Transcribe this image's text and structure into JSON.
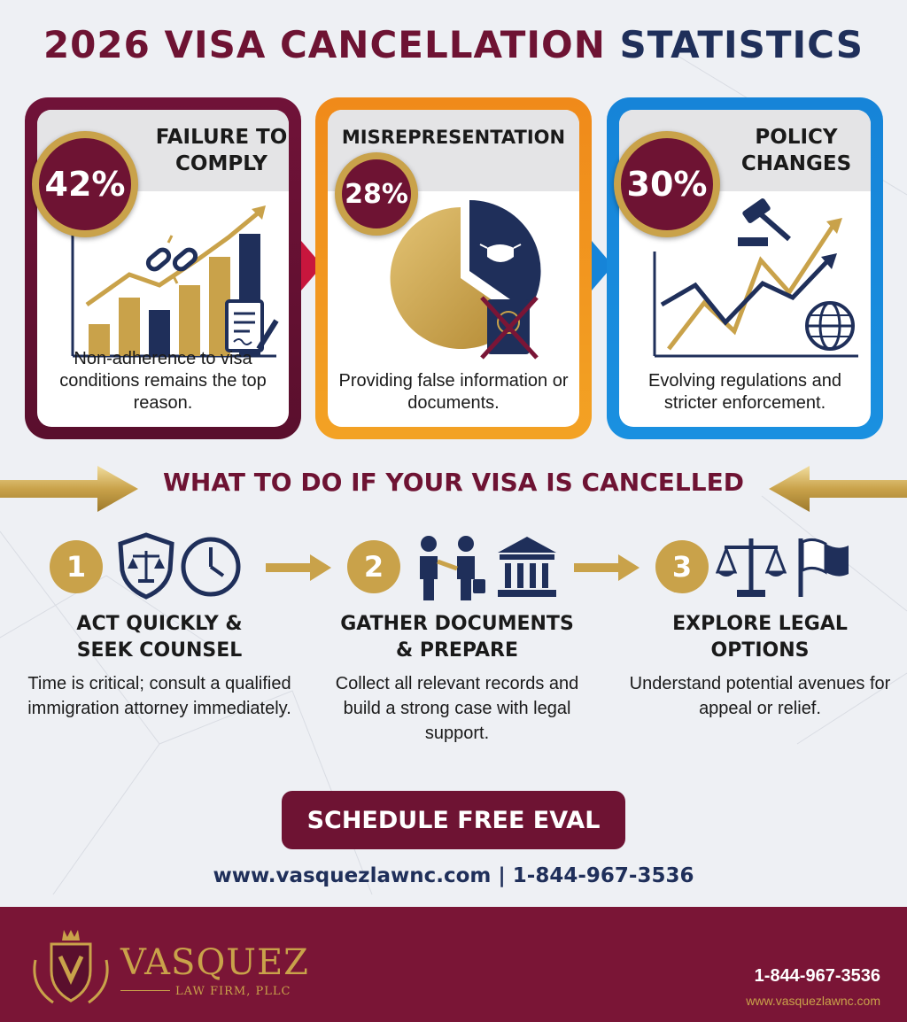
{
  "title": {
    "part1": "2026 VISA CANCELLATION",
    "part2": "STATISTICS"
  },
  "stats": [
    {
      "percent": "42%",
      "heading_line1": "FAILURE TO",
      "heading_line2": "COMPLY",
      "description": "Non-adherence to visa conditions remains the top reason.",
      "icons": [
        "broken-chain-icon",
        "document-pen-icon"
      ]
    },
    {
      "percent": "28%",
      "heading_line1": "MISREPRESENTATION",
      "description": "Providing false information or documents.",
      "icons": [
        "mask-icon",
        "crossed-passport-icon"
      ]
    },
    {
      "percent": "30%",
      "heading_line1": "POLICY",
      "heading_line2": "CHANGES",
      "description": "Evolving regulations and stricter enforcement.",
      "icons": [
        "gavel-icon",
        "globe-icon"
      ]
    }
  ],
  "section_title": "WHAT TO DO IF YOUR VISA IS CANCELLED",
  "steps": [
    {
      "number": "1",
      "title_line1": "ACT QUICKLY &",
      "title_line2": "SEEK COUNSEL",
      "description": "Time is critical; consult a qualified immigration attorney immediately.",
      "icons": [
        "shield-scales-icon",
        "clock-icon"
      ]
    },
    {
      "number": "2",
      "title_line1": "GATHER DOCUMENTS",
      "title_line2": "& PREPARE",
      "description": "Collect all relevant records and build a strong case with legal support.",
      "icons": [
        "handshake-icon",
        "courthouse-icon"
      ]
    },
    {
      "number": "3",
      "title_line1": "EXPLORE LEGAL",
      "title_line2": "OPTIONS",
      "description": "Understand potential avenues for appeal or relief.",
      "icons": [
        "scales-icon",
        "flag-icon"
      ]
    }
  ],
  "cta_label": "SCHEDULE FREE EVAL",
  "contact_line": "www.vasquezlawnc.com | 1-844-967-3536",
  "footer": {
    "firm_name": "VASQUEZ",
    "firm_subtitle": "LAW FIRM, PLLC",
    "phone": "1-844-967-3536",
    "website": "www.vasquezlawnc.com"
  },
  "colors": {
    "maroon": "#6e1333",
    "navy": "#1f2f5a",
    "gold": "#c9a24a",
    "orange": "#f08a1a",
    "blue": "#1684d8"
  }
}
